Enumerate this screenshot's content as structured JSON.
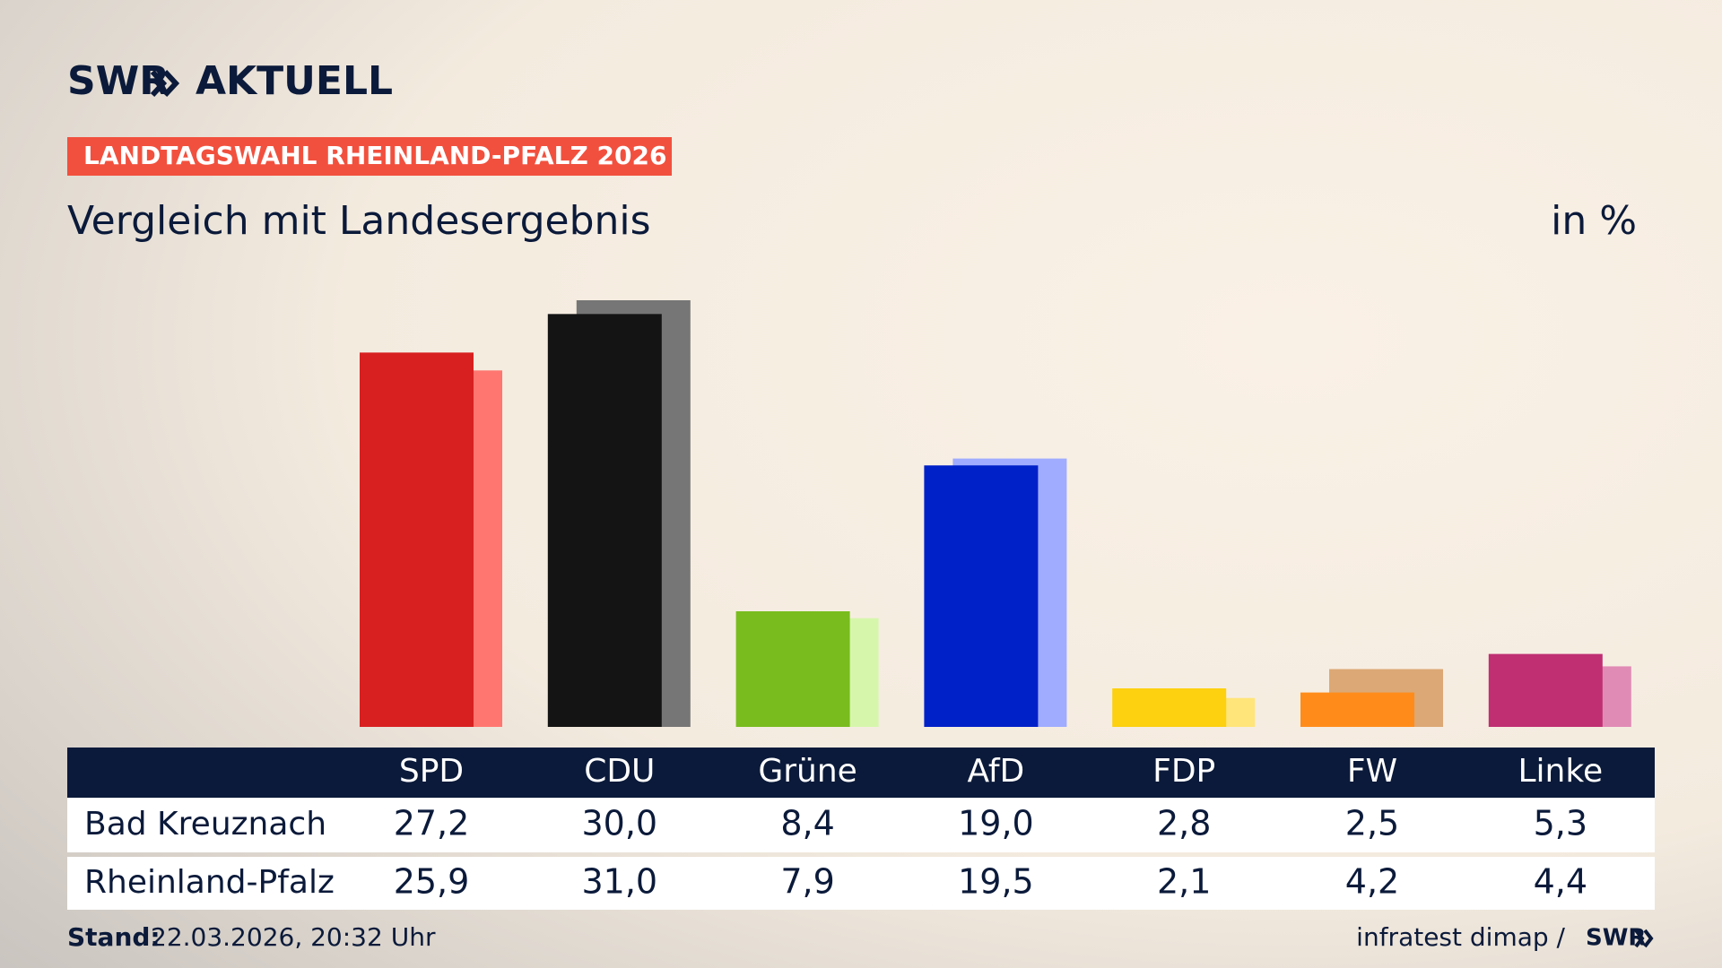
{
  "header": {
    "brand": "SWR",
    "brand_suffix": "AKTUELL",
    "tag": "LANDTAGSWAHL RHEINLAND-PFALZ 2026"
  },
  "chart_data": {
    "type": "bar",
    "title": "Vergleich mit Landesergebnis",
    "unit": "in %",
    "categories": [
      "SPD",
      "CDU",
      "Grüne",
      "AfD",
      "FDP",
      "FW",
      "Linke"
    ],
    "ylim": [
      0,
      31
    ],
    "series": [
      {
        "name": "Bad Kreuznach",
        "colors": [
          "#d82020",
          "#141414",
          "#78bc1e",
          "#0020c8",
          "#fdd010",
          "#ff8c1a",
          "#bf2f72"
        ],
        "values": [
          27.2,
          30.0,
          8.4,
          19.0,
          2.8,
          2.5,
          5.3
        ],
        "value_labels": [
          "27,2",
          "30,0",
          "8,4",
          "19,0",
          "2,8",
          "2,5",
          "5,3"
        ]
      },
      {
        "name": "Rheinland-Pfalz",
        "colors": [
          "#ff7670",
          "#767676",
          "#d6f7ab",
          "#a0acff",
          "#ffe57a",
          "#dca875",
          "#e08bb5"
        ],
        "values": [
          25.9,
          31.0,
          7.9,
          19.5,
          2.1,
          4.2,
          4.4
        ],
        "value_labels": [
          "25,9",
          "31,0",
          "7,9",
          "19,5",
          "2,1",
          "4,2",
          "4,4"
        ]
      }
    ]
  },
  "footer": {
    "stand_label": "Stand:",
    "stand_value": "22.03.2026, 20:32 Uhr",
    "source": "infratest dimap /",
    "source_brand": "SWR"
  }
}
